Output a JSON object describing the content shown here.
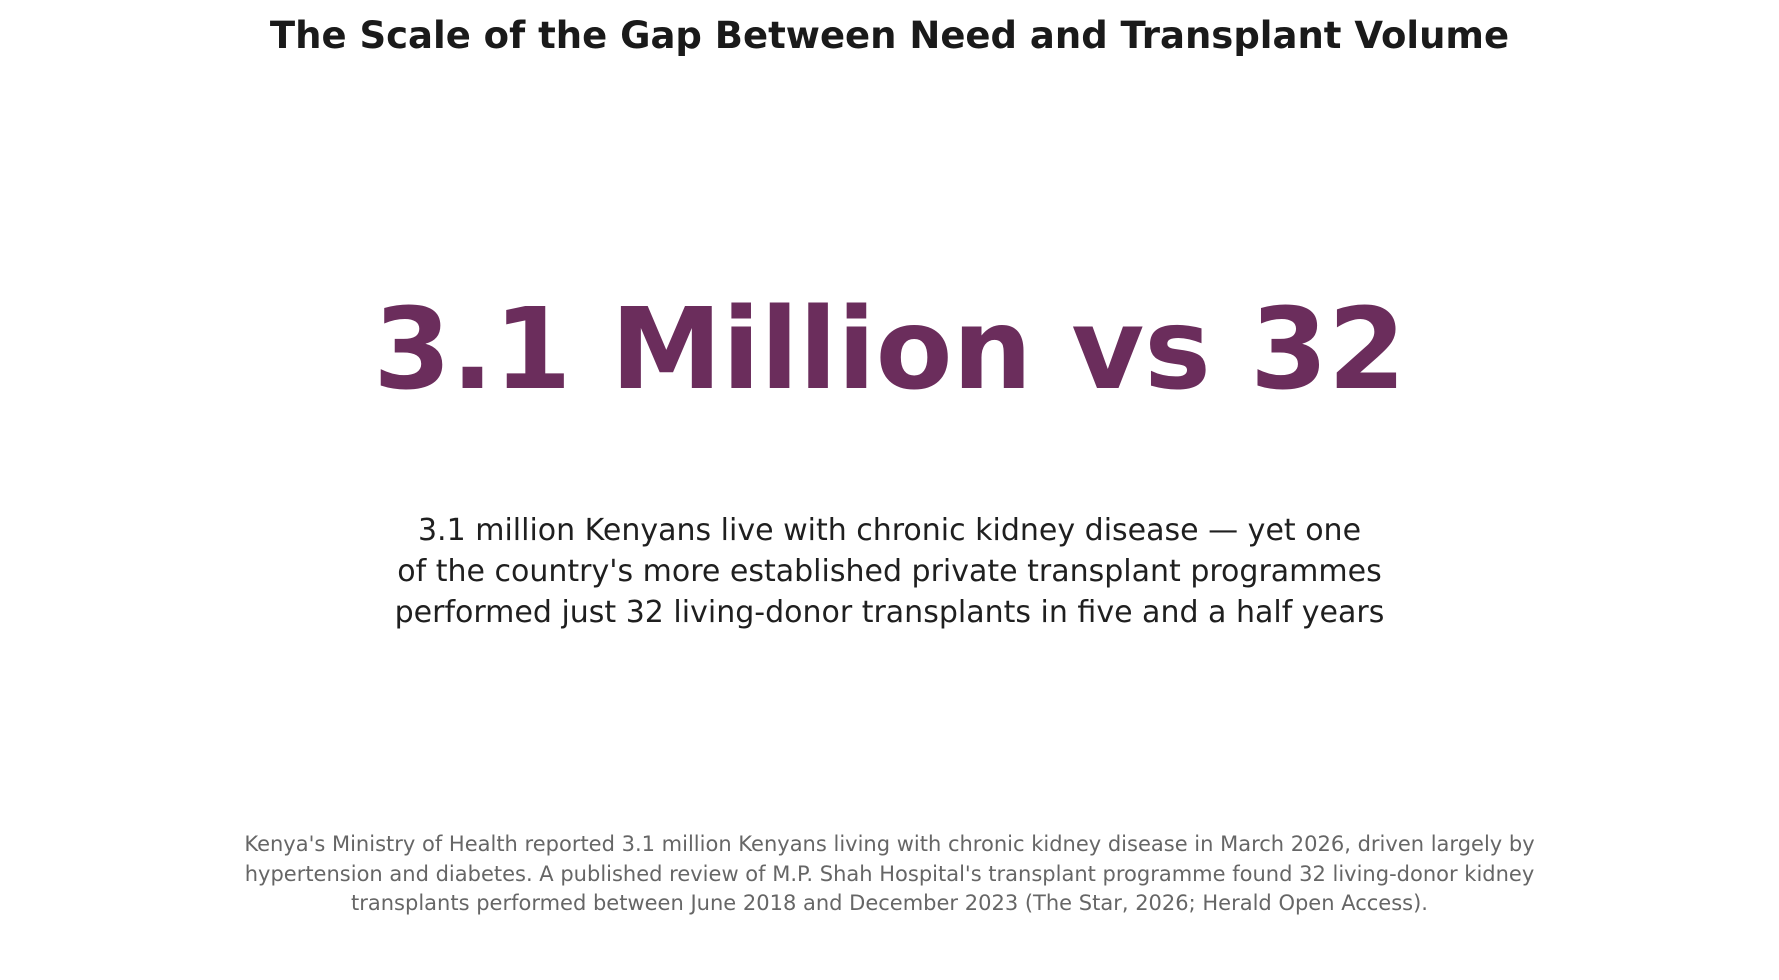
{
  "title": "The Scale of the Gap Between Need and Transplant Volume",
  "headline": "3.1 Million vs 32",
  "subtitle_lines": [
    "3.1 million Kenyans live with chronic kidney disease — yet one",
    "of the country's more established private transplant programmes",
    "performed just 32 living-donor transplants in five and a half years"
  ],
  "footnote_lines": [
    "Kenya's Ministry of Health reported 3.1 million Kenyans living with chronic kidney disease in March 2026, driven largely by",
    "hypertension and diabetes. A published review of M.P. Shah Hospital's transplant programme found 32 living-donor kidney",
    "transplants performed between June 2018 and December 2023 (The Star, 2026; Herald Open Access)."
  ],
  "colors": {
    "accent": "#6b2d5c",
    "title": "#1a1a1a",
    "body": "#1f1f1f",
    "note": "#666666"
  }
}
